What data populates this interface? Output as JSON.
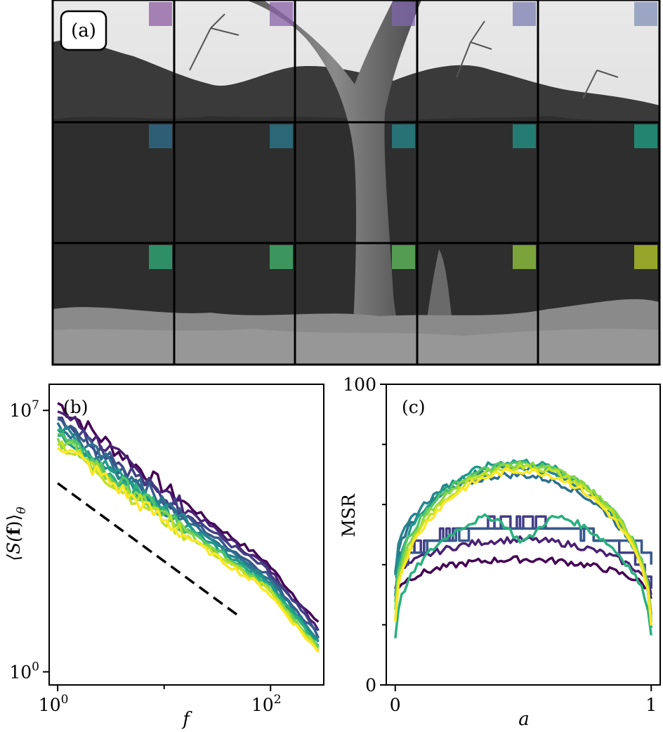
{
  "figure": {
    "panel_a": {
      "label": "(a)",
      "grid": {
        "rows": 3,
        "cols": 5
      },
      "tile_colors": [
        "#8e5ea2",
        "#8a62a8",
        "#8067ad",
        "#7c7fb0",
        "#8191b5",
        "#2f6f8e",
        "#2b7b8f",
        "#27888e",
        "#22968a",
        "#1fa386",
        "#2fb07a",
        "#42b86d",
        "#62c15d",
        "#94cc3e",
        "#b8cf2a"
      ]
    },
    "panel_b": {
      "label": "(b)"
    },
    "panel_c": {
      "label": "(c)"
    }
  },
  "chart_data": [
    {
      "type": "line",
      "panel": "(b)",
      "xlabel": "f",
      "ylabel": "⟨S(f)⟩_θ",
      "ylabel_main": "⟨S(",
      "ylabel_bold": "f",
      "ylabel_close": ")⟩",
      "ylabel_sub": "θ",
      "xscale": "log",
      "yscale": "log",
      "xlim_log10": [
        -0.08,
        2.5
      ],
      "ylim_log10": [
        -0.35,
        7.7
      ],
      "xtick_labels": [
        {
          "base": "10",
          "exp": "0",
          "log10": 0
        },
        {
          "base": "10",
          "exp": "2",
          "log10": 2
        }
      ],
      "ytick_labels": [
        {
          "base": "10",
          "exp": "0",
          "log10": 0
        },
        {
          "base": "10",
          "exp": "7",
          "log10": 7
        }
      ],
      "xminor_log10": [
        1
      ],
      "reference_line": {
        "style": "dashed",
        "color": "#000000",
        "x_log10": [
          0,
          1.7
        ],
        "y_log10": [
          5.05,
          1.5
        ]
      },
      "series": [
        {
          "color": "#440154",
          "y0": 7.0,
          "ygap": 0.2
        },
        {
          "color": "#482173",
          "y0": 6.9,
          "ygap": 0.15
        },
        {
          "color": "#433e85",
          "y0": 6.8,
          "ygap": 0.1
        },
        {
          "color": "#38598c",
          "y0": 6.7,
          "ygap": 0.05
        },
        {
          "color": "#2d708e",
          "y0": 6.6,
          "ygap": 0.05
        },
        {
          "color": "#25858e",
          "y0": 6.55,
          "ygap": 0.0
        },
        {
          "color": "#1e9b8a",
          "y0": 6.5,
          "ygap": 0.0
        },
        {
          "color": "#2ab07f",
          "y0": 6.45,
          "ygap": -0.05
        },
        {
          "color": "#52c569",
          "y0": 6.4,
          "ygap": -0.05
        },
        {
          "color": "#86d549",
          "y0": 6.35,
          "ygap": -0.1
        },
        {
          "color": "#c2df23",
          "y0": 6.3,
          "ygap": -0.1
        },
        {
          "color": "#fde725",
          "y0": 6.25,
          "ygap": -0.1
        }
      ]
    },
    {
      "type": "line",
      "panel": "(c)",
      "xlabel": "a",
      "ylabel": "MSR",
      "xlim": [
        -0.035,
        1.035
      ],
      "ylim": [
        0,
        100
      ],
      "xtick_labels": [
        {
          "value": 0,
          "label": "0"
        },
        {
          "value": 1,
          "label": "1"
        }
      ],
      "ytick_labels": [
        {
          "value": 0,
          "label": "0"
        },
        {
          "value": 100,
          "label": "100"
        }
      ],
      "yminor_ticks": [
        20,
        40,
        60,
        80
      ],
      "series": [
        {
          "color": "#440154",
          "end0": 30,
          "end1": 29,
          "peak": 42,
          "step": false
        },
        {
          "color": "#482173",
          "end0": 33,
          "end1": 30,
          "peak": 49,
          "step": false
        },
        {
          "color": "#433e85",
          "end0": 35,
          "end1": 31,
          "peak": 55,
          "step": true
        },
        {
          "color": "#38598c",
          "end0": 38,
          "end1": 40,
          "peak": 52,
          "step": true
        },
        {
          "color": "#2d708e",
          "end0": 37,
          "end1": 24,
          "peak": 73,
          "step": false
        },
        {
          "color": "#25858e",
          "end0": 37,
          "end1": 22,
          "peak": 76,
          "step": false
        },
        {
          "color": "#1e9b8a",
          "end0": 30,
          "end1": 19,
          "peak": 77,
          "step": false
        },
        {
          "color": "#2ab07f",
          "end0": 16,
          "end1": 16,
          "peak": 58,
          "step": false,
          "dip": true
        },
        {
          "color": "#52c569",
          "end0": 28,
          "end1": 22,
          "peak": 75,
          "step": false
        },
        {
          "color": "#86d549",
          "end0": 25,
          "end1": 22,
          "peak": 74,
          "step": false
        },
        {
          "color": "#c2df23",
          "end0": 22,
          "end1": 20,
          "peak": 73,
          "step": false
        },
        {
          "color": "#fde725",
          "end0": 22,
          "end1": 19,
          "peak": 72,
          "step": false
        }
      ]
    }
  ]
}
